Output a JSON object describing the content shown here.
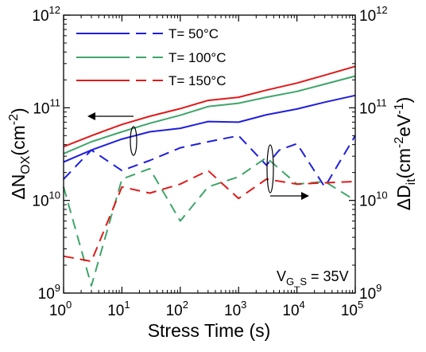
{
  "chart_data": {
    "type": "line",
    "x_scale": "log",
    "xlim": [
      1,
      100000
    ],
    "xlabel": "Stress Time (s)",
    "x_ticks": [
      {
        "base": "10",
        "exp": "0"
      },
      {
        "base": "10",
        "exp": "1"
      },
      {
        "base": "10",
        "exp": "2"
      },
      {
        "base": "10",
        "exp": "3"
      },
      {
        "base": "10",
        "exp": "4"
      },
      {
        "base": "10",
        "exp": "5"
      }
    ],
    "y_left": {
      "scale": "log",
      "lim": [
        1000000000.0,
        1000000000000.0
      ],
      "label_main": "ΔN",
      "label_sub": "OX",
      "label_mid": "(cm",
      "label_sup": "-2",
      "label_end": ")",
      "ticks": [
        {
          "base": "10",
          "exp": "9"
        },
        {
          "base": "10",
          "exp": "10"
        },
        {
          "base": "10",
          "exp": "11"
        },
        {
          "base": "10",
          "exp": "12"
        }
      ]
    },
    "y_right": {
      "scale": "log",
      "lim": [
        1000000000.0,
        1000000000000.0
      ],
      "label_main": "ΔD",
      "label_sub": "it",
      "label_mid": "(cm",
      "label_sup1": "-2",
      "label_mid2": "eV",
      "label_sup2": "-1",
      "label_end": ")",
      "ticks": [
        {
          "base": "10",
          "exp": "9"
        },
        {
          "base": "10",
          "exp": "10"
        },
        {
          "base": "10",
          "exp": "11"
        },
        {
          "base": "10",
          "exp": "12"
        }
      ]
    },
    "legend": {
      "placement": "top-left",
      "entries": [
        {
          "label": "T= 50°C",
          "color": "#1f1fdb"
        },
        {
          "label": "T= 100°C",
          "color": "#3fa56a"
        },
        {
          "label": "T= 150°C",
          "color": "#e01a1a"
        }
      ]
    },
    "annotation": {
      "main": "V",
      "sub": "G_S",
      "end": " = 35V"
    },
    "series": [
      {
        "axis": "left",
        "style": "solid",
        "color": "#1f1fdb",
        "x": [
          1,
          3,
          10,
          30,
          100,
          300,
          1000,
          3000,
          10000,
          30000,
          100000
        ],
        "y": [
          26000000000.0,
          35000000000.0,
          46000000000.0,
          55000000000.0,
          60000000000.0,
          71000000000.0,
          70000000000.0,
          84000000000.0,
          97000000000.0,
          115000000000.0,
          136000000000.0
        ]
      },
      {
        "axis": "left",
        "style": "solid",
        "color": "#3fa56a",
        "x": [
          1,
          3,
          10,
          30,
          100,
          300,
          1000,
          3000,
          10000,
          30000,
          100000
        ],
        "y": [
          32000000000.0,
          43000000000.0,
          55000000000.0,
          68000000000.0,
          83000000000.0,
          103000000000.0,
          112000000000.0,
          130000000000.0,
          150000000000.0,
          180000000000.0,
          220000000000.0
        ]
      },
      {
        "axis": "left",
        "style": "solid",
        "color": "#e01a1a",
        "x": [
          1,
          3,
          10,
          30,
          100,
          300,
          1000,
          3000,
          10000,
          30000,
          100000
        ],
        "y": [
          38000000000.0,
          50000000000.0,
          66000000000.0,
          81000000000.0,
          98000000000.0,
          120000000000.0,
          130000000000.0,
          155000000000.0,
          185000000000.0,
          225000000000.0,
          280000000000.0
        ]
      },
      {
        "axis": "right",
        "style": "dashed",
        "color": "#1f1fdb",
        "x": [
          1,
          3,
          10,
          30,
          100,
          300,
          1000,
          3000,
          5000,
          10000,
          30000,
          100000
        ],
        "y": [
          17000000000.0,
          35000000000.0,
          21000000000.0,
          27000000000.0,
          37000000000.0,
          43000000000.0,
          50000000000.0,
          24000000000.0,
          35000000000.0,
          41000000000.0,
          14000000000.0,
          50000000000.0
        ]
      },
      {
        "axis": "right",
        "style": "dashed",
        "color": "#3fa56a",
        "x": [
          1,
          3,
          10,
          30,
          100,
          300,
          1000,
          3000,
          10000,
          30000,
          100000
        ],
        "y": [
          14000000000.0,
          1200000000.0,
          17000000000.0,
          22000000000.0,
          6000000000.0,
          14000000000.0,
          18000000000.0,
          29000000000.0,
          15000000000.0,
          16000000000.0,
          10000000000.0
        ]
      },
      {
        "axis": "right",
        "style": "dashed",
        "color": "#e01a1a",
        "x": [
          1,
          3,
          10,
          30,
          100,
          300,
          1000,
          3000,
          10000,
          30000,
          100000
        ],
        "y": [
          2500000000.0,
          2200000000.0,
          14000000000.0,
          12000000000.0,
          15000000000.0,
          21000000000.0,
          10500000000.0,
          17000000000.0,
          15000000000.0,
          15500000000.0,
          16000000000.0
        ]
      }
    ]
  }
}
